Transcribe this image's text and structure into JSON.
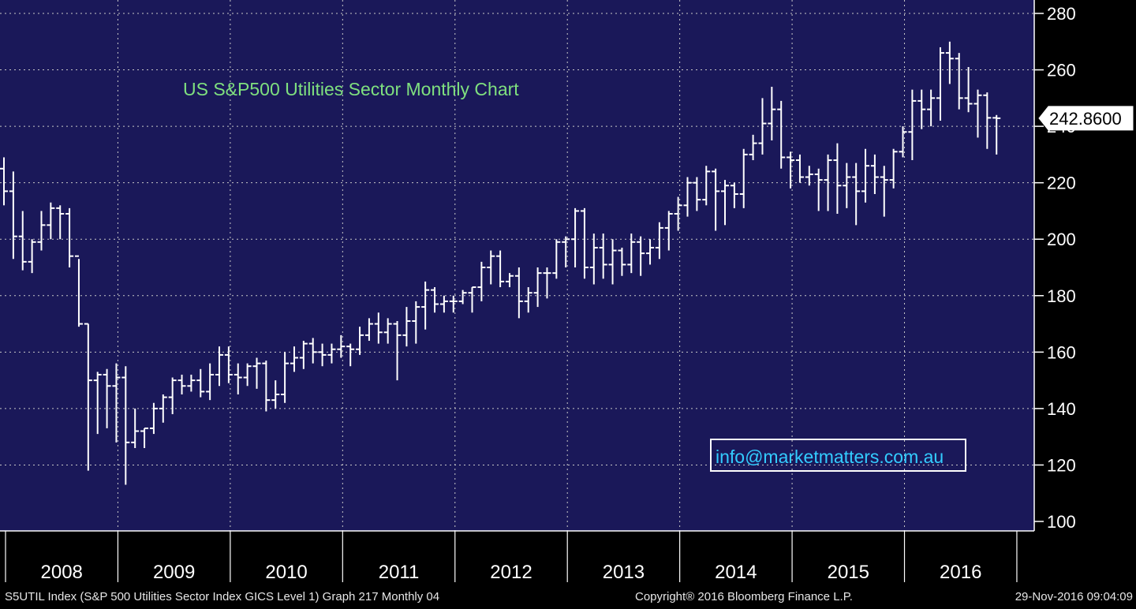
{
  "chart_data": {
    "type": "ohlc",
    "title": "US S&P500 Utilities Sector Monthly Chart",
    "ylim": [
      100,
      280
    ],
    "yticks": [
      100,
      120,
      140,
      160,
      180,
      200,
      220,
      240,
      260,
      280
    ],
    "x_labels": [
      "2008",
      "2009",
      "2010",
      "2011",
      "2012",
      "2013",
      "2014",
      "2015",
      "2016"
    ],
    "grid": true,
    "colors": {
      "background": "#1a1859",
      "bars": "#ffffff",
      "title": "#7fe07f",
      "email": "#33ccff"
    },
    "last_price": {
      "value": 242.86,
      "label": "242.8600"
    },
    "watermark": "info@marketmatters.com.au",
    "series": [
      {
        "x": [
          "2008-01",
          "2008-02",
          "2008-03",
          "2008-04",
          "2008-05",
          "2008-06",
          "2008-07",
          "2008-08",
          "2008-09",
          "2008-10",
          "2008-11",
          "2008-12",
          "2009-01",
          "2009-02",
          "2009-03",
          "2009-04",
          "2009-05",
          "2009-06",
          "2009-07",
          "2009-08",
          "2009-09",
          "2009-10",
          "2009-11",
          "2009-12",
          "2010-01",
          "2010-02",
          "2010-03",
          "2010-04",
          "2010-05",
          "2010-06",
          "2010-07",
          "2010-08",
          "2010-09",
          "2010-10",
          "2010-11",
          "2010-12",
          "2011-01",
          "2011-02",
          "2011-03",
          "2011-04",
          "2011-05",
          "2011-06",
          "2011-07",
          "2011-08",
          "2011-09",
          "2011-10",
          "2011-11",
          "2011-12",
          "2012-01",
          "2012-02",
          "2012-03",
          "2012-04",
          "2012-05",
          "2012-06",
          "2012-07",
          "2012-08",
          "2012-09",
          "2012-10",
          "2012-11",
          "2012-12",
          "2013-01",
          "2013-02",
          "2013-03",
          "2013-04",
          "2013-05",
          "2013-06",
          "2013-07",
          "2013-08",
          "2013-09",
          "2013-10",
          "2013-11",
          "2013-12",
          "2014-01",
          "2014-02",
          "2014-03",
          "2014-04",
          "2014-05",
          "2014-06",
          "2014-07",
          "2014-08",
          "2014-09",
          "2014-10",
          "2014-11",
          "2014-12",
          "2015-01",
          "2015-02",
          "2015-03",
          "2015-04",
          "2015-05",
          "2015-06",
          "2015-07",
          "2015-08",
          "2015-09",
          "2015-10",
          "2015-11",
          "2015-12",
          "2016-01",
          "2016-02",
          "2016-03",
          "2016-04",
          "2016-05",
          "2016-06",
          "2016-07",
          "2016-08",
          "2016-09",
          "2016-10",
          "2016-11"
        ],
        "ohlc": [
          [
            225,
            229,
            212,
            217
          ],
          [
            217,
            224,
            193,
            201
          ],
          [
            201,
            210,
            189,
            192
          ],
          [
            192,
            200,
            188,
            199
          ],
          [
            199,
            210,
            196,
            205
          ],
          [
            205,
            213,
            200,
            211
          ],
          [
            211,
            212,
            200,
            209
          ],
          [
            209,
            211,
            190,
            194
          ],
          [
            194,
            193,
            169,
            170
          ],
          [
            170,
            170,
            118,
            150
          ],
          [
            150,
            153,
            131,
            152
          ],
          [
            152,
            154,
            133,
            148
          ],
          [
            148,
            156,
            128,
            151
          ],
          [
            151,
            155,
            113,
            128
          ],
          [
            128,
            140,
            126,
            132
          ],
          [
            132,
            133,
            126,
            133
          ],
          [
            133,
            142,
            131,
            140
          ],
          [
            140,
            145,
            135,
            144
          ],
          [
            144,
            151,
            138,
            150
          ],
          [
            150,
            152,
            145,
            148
          ],
          [
            148,
            152,
            146,
            150
          ],
          [
            150,
            154,
            144,
            146
          ],
          [
            146,
            156,
            143,
            152
          ],
          [
            152,
            162,
            148,
            159
          ],
          [
            159,
            162,
            149,
            152
          ],
          [
            152,
            156,
            145,
            151
          ],
          [
            151,
            156,
            148,
            155
          ],
          [
            155,
            158,
            147,
            156
          ],
          [
            156,
            157,
            139,
            143
          ],
          [
            143,
            150,
            140,
            145
          ],
          [
            145,
            160,
            142,
            156
          ],
          [
            156,
            162,
            153,
            158
          ],
          [
            158,
            164,
            154,
            163
          ],
          [
            163,
            165,
            156,
            160
          ],
          [
            160,
            163,
            155,
            159
          ],
          [
            159,
            163,
            156,
            161
          ],
          [
            161,
            166,
            158,
            162
          ],
          [
            162,
            163,
            155,
            161
          ],
          [
            161,
            169,
            159,
            166
          ],
          [
            166,
            172,
            164,
            170
          ],
          [
            170,
            174,
            163,
            167
          ],
          [
            167,
            172,
            163,
            170
          ],
          [
            170,
            171,
            150,
            166
          ],
          [
            166,
            176,
            162,
            171
          ],
          [
            171,
            178,
            163,
            176
          ],
          [
            176,
            185,
            168,
            182
          ],
          [
            182,
            183,
            174,
            177
          ],
          [
            177,
            180,
            174,
            178
          ],
          [
            178,
            180,
            174,
            178
          ],
          [
            178,
            182,
            177,
            181
          ],
          [
            181,
            183,
            174,
            183
          ],
          [
            183,
            192,
            178,
            190
          ],
          [
            190,
            196,
            184,
            194
          ],
          [
            194,
            196,
            183,
            185
          ],
          [
            185,
            188,
            183,
            187
          ],
          [
            187,
            190,
            172,
            178
          ],
          [
            178,
            183,
            174,
            181
          ],
          [
            181,
            190,
            176,
            188
          ],
          [
            188,
            190,
            179,
            188
          ],
          [
            188,
            200,
            186,
            199
          ],
          [
            199,
            201,
            190,
            200
          ],
          [
            200,
            211,
            190,
            210
          ],
          [
            210,
            211,
            186,
            190
          ],
          [
            190,
            202,
            184,
            197
          ],
          [
            197,
            202,
            186,
            191
          ],
          [
            191,
            200,
            184,
            196
          ],
          [
            196,
            197,
            187,
            191
          ],
          [
            191,
            202,
            188,
            199
          ],
          [
            199,
            201,
            187,
            195
          ],
          [
            195,
            200,
            191,
            197
          ],
          [
            197,
            206,
            193,
            204
          ],
          [
            204,
            210,
            196,
            209
          ],
          [
            209,
            215,
            203,
            212
          ],
          [
            212,
            222,
            208,
            220
          ],
          [
            220,
            222,
            210,
            214
          ],
          [
            214,
            226,
            212,
            224
          ],
          [
            224,
            225,
            203,
            217
          ],
          [
            217,
            221,
            205,
            219
          ],
          [
            219,
            220,
            211,
            216
          ],
          [
            216,
            232,
            211,
            230
          ],
          [
            230,
            237,
            228,
            234
          ],
          [
            234,
            250,
            230,
            241
          ],
          [
            241,
            254,
            235,
            246
          ],
          [
            246,
            249,
            225,
            229
          ],
          [
            229,
            231,
            218,
            228
          ],
          [
            228,
            230,
            220,
            222
          ],
          [
            222,
            226,
            219,
            223
          ],
          [
            223,
            225,
            210,
            221
          ],
          [
            221,
            230,
            210,
            228
          ],
          [
            228,
            234,
            209,
            219
          ],
          [
            219,
            227,
            211,
            222
          ],
          [
            222,
            227,
            205,
            217
          ],
          [
            217,
            232,
            213,
            226
          ],
          [
            226,
            230,
            216,
            222
          ],
          [
            222,
            226,
            208,
            221
          ],
          [
            221,
            232,
            218,
            231
          ],
          [
            231,
            240,
            229,
            238
          ],
          [
            238,
            253,
            228,
            249
          ],
          [
            249,
            253,
            239,
            246
          ],
          [
            246,
            253,
            240,
            250
          ],
          [
            250,
            268,
            242,
            266
          ],
          [
            266,
            270,
            255,
            264
          ],
          [
            264,
            266,
            246,
            250
          ],
          [
            250,
            261,
            245,
            248
          ],
          [
            248,
            253,
            236,
            251
          ],
          [
            251,
            252,
            232,
            243
          ],
          [
            243,
            244,
            230,
            242.86
          ]
        ]
      }
    ]
  },
  "footer": {
    "left": "S5UTIL Index (S&P 500 Utilities Sector Index GICS Level 1) Graph 217  Monthly 04",
    "copyright": "Copyright® 2016 Bloomberg Finance L.P.",
    "timestamp": "29-Nov-2016 09:04:09"
  }
}
